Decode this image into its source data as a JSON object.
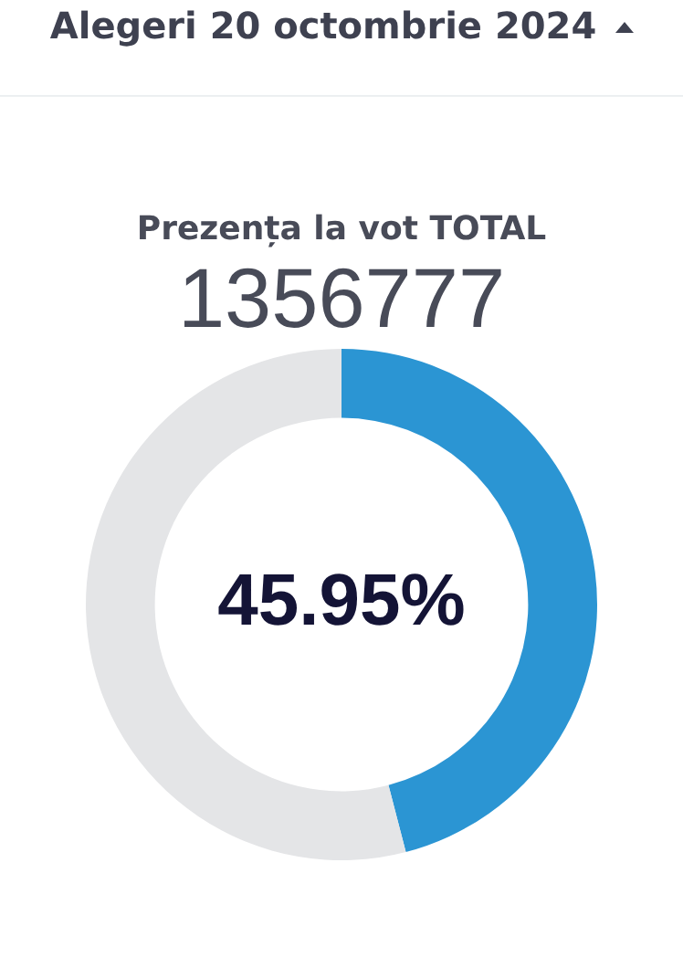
{
  "chart_data": {
    "type": "donut",
    "title": "Alegeri 20 octombrie 2024",
    "subtitle": "Prezența la vot TOTAL",
    "annotations": [
      "1356777"
    ],
    "categories": [
      null,
      null
    ],
    "values": [
      45.95,
      54.05
    ],
    "colors": [
      "#2b95d3",
      "#e4e5e7"
    ],
    "value_labels": [
      "45.95%",
      null
    ]
  }
}
